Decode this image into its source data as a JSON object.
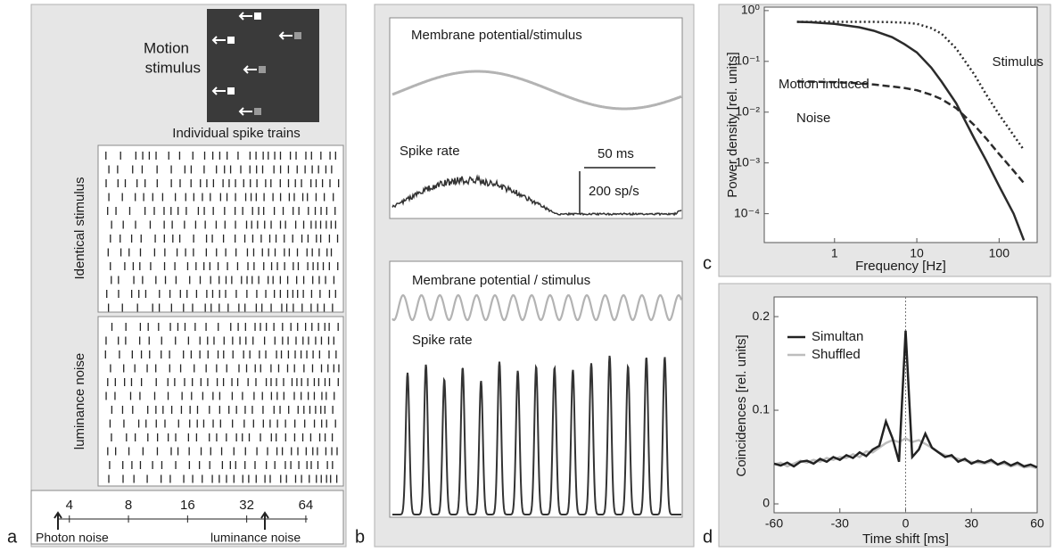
{
  "panel_labels": [
    "a",
    "b",
    "c",
    "d"
  ],
  "panel_a": {
    "stimulus_title": [
      "Motion",
      "stimulus"
    ],
    "raster_title": "Individual spike  trains",
    "groups": [
      "Identical stimulus",
      "luminance noise"
    ],
    "noise_scale": {
      "xlim": [
        3.5,
        65.4
      ],
      "xticks": [
        4,
        8,
        16,
        32,
        64
      ],
      "log": true
    },
    "arrow_labels": [
      "Photon noise",
      "luminance noise"
    ]
  },
  "panel_b": {
    "top": {
      "title": "Membrane potential/stimulus",
      "rate_label": "Spike rate",
      "time_scale": "50 ms",
      "rate_scale": "200 sp/s"
    },
    "bottom": {
      "title": "Membrane potential / stimulus",
      "rate_label": "Spike rate"
    }
  },
  "chart_data": [
    {
      "type": "line",
      "xlog": true,
      "ylog": true,
      "legend": "inline",
      "xlabel": "Frequency [Hz]",
      "ylabel": "Power density [rel. units]",
      "xlim": [
        0.14,
        290
      ],
      "ylim": [
        2.7e-05,
        1.17
      ],
      "xticks": [
        1,
        10,
        100
      ],
      "yticks": [
        {
          "value": 1,
          "label": "10⁰"
        },
        {
          "value": 0.1,
          "label": "10⁻¹"
        },
        {
          "value": 0.01,
          "label": "10⁻²"
        },
        {
          "value": 0.001,
          "label": "10⁻³"
        },
        {
          "value": 0.0001,
          "label": "10⁻⁴"
        }
      ],
      "x": [
        0.35,
        0.5,
        1,
        2,
        3,
        5,
        7,
        10,
        15,
        20,
        30,
        50,
        70,
        100,
        150,
        200
      ],
      "series": [
        {
          "name": "Motion induced",
          "color": "#2b2b2b",
          "style": "solid",
          "values": [
            0.6,
            0.59,
            0.55,
            0.47,
            0.4,
            0.3,
            0.22,
            0.15,
            0.075,
            0.04,
            0.015,
            0.003,
            0.0011,
            0.00035,
            0.0001,
            3e-05
          ]
        },
        {
          "name": "Stimulus",
          "color": "#2b2b2b",
          "style": "dotted",
          "values": [
            0.6,
            0.6,
            0.6,
            0.6,
            0.6,
            0.59,
            0.58,
            0.55,
            0.45,
            0.35,
            0.18,
            0.055,
            0.022,
            0.009,
            0.0035,
            0.0018
          ]
        },
        {
          "name": "Noise",
          "color": "#2b2b2b",
          "style": "dashed",
          "values": [
            0.04,
            0.04,
            0.039,
            0.037,
            0.035,
            0.032,
            0.03,
            0.027,
            0.022,
            0.018,
            0.012,
            0.0055,
            0.003,
            0.0015,
            0.0007,
            0.0004
          ]
        }
      ]
    },
    {
      "type": "line",
      "legend": "upper left",
      "xlabel": "Time shift [ms]",
      "ylabel": "Coincidences [rel. units]",
      "xlim": [
        -60,
        60
      ],
      "ylim": [
        -0.0095,
        0.221
      ],
      "xticks": [
        -60,
        -30,
        0,
        30,
        60
      ],
      "yticks": [
        0,
        0.1,
        0.2
      ],
      "x": [
        -60,
        -57,
        -54,
        -51,
        -48,
        -45,
        -42,
        -39,
        -36,
        -33,
        -30,
        -27,
        -24,
        -21,
        -18,
        -15,
        -12,
        -9,
        -6,
        -3,
        0,
        3,
        6,
        9,
        12,
        15,
        18,
        21,
        24,
        27,
        30,
        33,
        36,
        39,
        42,
        45,
        48,
        51,
        54,
        57,
        60
      ],
      "series": [
        {
          "name": "Simultan",
          "color": "#222222",
          "style": "solid",
          "values": [
            0.043,
            0.041,
            0.044,
            0.04,
            0.045,
            0.046,
            0.043,
            0.048,
            0.045,
            0.05,
            0.047,
            0.052,
            0.049,
            0.055,
            0.051,
            0.058,
            0.062,
            0.088,
            0.07,
            0.045,
            0.185,
            0.05,
            0.058,
            0.075,
            0.06,
            0.055,
            0.05,
            0.052,
            0.045,
            0.048,
            0.043,
            0.046,
            0.044,
            0.047,
            0.042,
            0.045,
            0.041,
            0.044,
            0.04,
            0.042,
            0.039
          ]
        },
        {
          "name": "Shuffled",
          "color": "#bdbdbd",
          "style": "solid",
          "values": [
            0.042,
            0.044,
            0.04,
            0.043,
            0.046,
            0.044,
            0.047,
            0.045,
            0.049,
            0.047,
            0.05,
            0.049,
            0.053,
            0.05,
            0.056,
            0.055,
            0.06,
            0.065,
            0.068,
            0.066,
            0.07,
            0.066,
            0.068,
            0.064,
            0.06,
            0.055,
            0.052,
            0.05,
            0.048,
            0.046,
            0.045,
            0.044,
            0.043,
            0.045,
            0.042,
            0.043,
            0.04,
            0.042,
            0.039,
            0.04,
            0.038
          ]
        }
      ]
    }
  ]
}
